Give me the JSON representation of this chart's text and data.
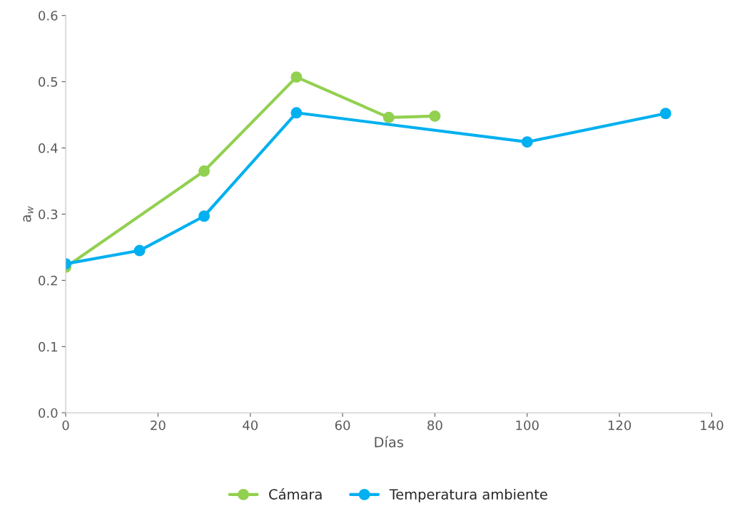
{
  "chart_data": {
    "type": "line",
    "xlabel": "Días",
    "ylabel": "a$_{w}$",
    "series": [
      {
        "name": "Cámara",
        "color": "#92d050",
        "x": [
          0,
          30,
          50,
          70,
          80
        ],
        "values": [
          0.22,
          0.365,
          0.507,
          0.446,
          0.448
        ]
      },
      {
        "name": "Temperatura ambiente",
        "color": "#00b0f0",
        "x": [
          0,
          16,
          30,
          50,
          100,
          130
        ],
        "values": [
          0.225,
          0.245,
          0.297,
          0.453,
          0.409,
          0.452
        ]
      }
    ],
    "xlim": [
      0,
      140
    ],
    "xticks": [
      0,
      20,
      40,
      60,
      80,
      100,
      120,
      140
    ],
    "ylim": [
      0,
      0.6
    ],
    "yticks": [
      {
        "value": 0,
        "label": "0.0"
      },
      0.1,
      0.2,
      0.3,
      0.4,
      0.5,
      0.6
    ],
    "grid": false,
    "legend": "bottom",
    "marker": "circle",
    "line_style": "solid"
  }
}
